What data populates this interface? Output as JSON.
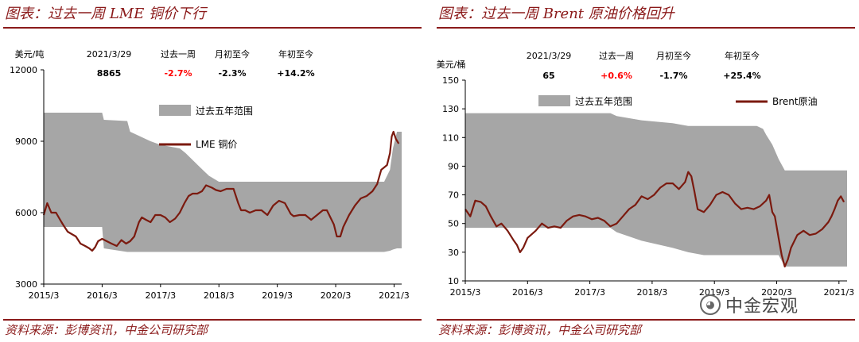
{
  "colors": {
    "accent": "#8b1a1a",
    "band": "#a6a6a6",
    "line": "#7b1a0f",
    "up": "#ff0000"
  },
  "watermark": {
    "text": "中金宏观",
    "icon": "wechat-icon"
  },
  "chart_data": [
    {
      "type": "area",
      "title": "图表：过去一周 LME 铜价下行",
      "source": "资料来源：彭博资讯，中金公司研究部",
      "ylabel": "美元/吨",
      "ylim": [
        3000,
        12000
      ],
      "yticks": [
        "3000",
        "6000",
        "9000",
        "12000"
      ],
      "xlim": [
        2015.17,
        2021.3
      ],
      "xticks": [
        "2015/3",
        "2016/3",
        "2017/3",
        "2018/3",
        "2019/3",
        "2020/3",
        "2021/3"
      ],
      "legend": [
        "过去五年范围",
        "LME 铜价"
      ],
      "stats": {
        "headers": [
          "2021/3/29",
          "过去一周",
          "月初至今",
          "年初至今"
        ],
        "values": [
          "8865",
          "-2.7%",
          "-2.3%",
          "+14.2%"
        ]
      },
      "series": [
        {
          "name": "过去五年范围",
          "x": [
            2015.17,
            2016.17,
            2016.2,
            2016.6,
            2016.65,
            2017.0,
            2017.17,
            2017.5,
            2017.6,
            2017.85,
            2018.0,
            2018.17,
            2018.5,
            2019.0,
            2019.5,
            2020.0,
            2020.5,
            2020.7,
            2021.0,
            2021.1,
            2021.15,
            2021.22,
            2021.3
          ],
          "upper": [
            10200,
            10200,
            9900,
            9850,
            9400,
            9000,
            8850,
            8700,
            8500,
            7900,
            7550,
            7300,
            7300,
            7300,
            7300,
            7300,
            7300,
            7300,
            7300,
            7800,
            8700,
            9400,
            9400
          ],
          "lower": [
            5400,
            5400,
            4500,
            4350,
            4350,
            4350,
            4350,
            4350,
            4350,
            4350,
            4350,
            4350,
            4350,
            4350,
            4350,
            4350,
            4350,
            4350,
            4350,
            4400,
            4450,
            4500,
            4500
          ]
        },
        {
          "name": "LME 铜价",
          "x": [
            2015.17,
            2015.23,
            2015.3,
            2015.38,
            2015.45,
            2015.5,
            2015.58,
            2015.65,
            2015.72,
            2015.8,
            2015.88,
            2015.95,
            2016.0,
            2016.05,
            2016.1,
            2016.17,
            2016.25,
            2016.33,
            2016.42,
            2016.5,
            2016.58,
            2016.65,
            2016.72,
            2016.8,
            2016.85,
            2016.92,
            2017.0,
            2017.08,
            2017.17,
            2017.25,
            2017.33,
            2017.42,
            2017.5,
            2017.58,
            2017.65,
            2017.72,
            2017.8,
            2017.88,
            2017.95,
            2018.05,
            2018.12,
            2018.2,
            2018.3,
            2018.42,
            2018.5,
            2018.55,
            2018.62,
            2018.7,
            2018.8,
            2018.9,
            2019.0,
            2019.1,
            2019.2,
            2019.3,
            2019.4,
            2019.45,
            2019.55,
            2019.65,
            2019.75,
            2019.85,
            2019.95,
            2020.02,
            2020.08,
            2020.14,
            2020.19,
            2020.25,
            2020.3,
            2020.4,
            2020.5,
            2020.6,
            2020.7,
            2020.8,
            2020.88,
            2020.95,
            2021.0,
            2021.05,
            2021.1,
            2021.13,
            2021.16,
            2021.2,
            2021.25
          ],
          "y": [
            5900,
            6400,
            6000,
            6000,
            5700,
            5500,
            5200,
            5100,
            5000,
            4700,
            4600,
            4500,
            4400,
            4550,
            4800,
            4900,
            4800,
            4700,
            4600,
            4850,
            4700,
            4800,
            5000,
            5600,
            5800,
            5700,
            5600,
            5900,
            5900,
            5800,
            5600,
            5750,
            6000,
            6400,
            6700,
            6800,
            6800,
            6900,
            7150,
            7050,
            6950,
            6900,
            7000,
            7000,
            6400,
            6100,
            6100,
            6000,
            6100,
            6100,
            5900,
            6300,
            6500,
            6400,
            5950,
            5850,
            5900,
            5900,
            5700,
            5900,
            6100,
            6100,
            5800,
            5500,
            5000,
            5000,
            5400,
            5900,
            6300,
            6600,
            6700,
            6900,
            7200,
            7800,
            7900,
            8000,
            8500,
            9200,
            9400,
            9100,
            8900
          ]
        }
      ]
    },
    {
      "type": "area",
      "title": "图表：过去一周 Brent 原油价格回升",
      "source": "资料来源：彭博资讯，中金公司研究部",
      "ylabel": "美元/桶",
      "ylim": [
        10,
        150
      ],
      "yticks": [
        "10",
        "30",
        "50",
        "70",
        "90",
        "110",
        "130",
        "150"
      ],
      "xlim": [
        2015.17,
        2021.3
      ],
      "xticks": [
        "2015/3",
        "2016/3",
        "2017/3",
        "2018/3",
        "2019/3",
        "2020/3",
        "2021/3"
      ],
      "legend": [
        "过去五年范围",
        "Brent原油"
      ],
      "stats": {
        "headers": [
          "2021/3/29",
          "过去一周",
          "月初至今",
          "年初至今"
        ],
        "values": [
          "65",
          "+0.6%",
          "-1.7%",
          "+25.4%"
        ]
      },
      "series": [
        {
          "name": "过去五年范围",
          "x": [
            2015.17,
            2017.5,
            2017.6,
            2018.0,
            2018.5,
            2018.75,
            2019.0,
            2019.5,
            2019.85,
            2019.95,
            2020.0,
            2020.1,
            2020.2,
            2020.3,
            2021.3
          ],
          "upper": [
            127,
            127,
            125,
            122,
            120,
            118,
            118,
            118,
            118,
            116,
            112,
            105,
            95,
            87,
            87
          ],
          "lower": [
            47,
            47,
            44,
            38,
            33,
            30,
            28,
            28,
            28,
            28,
            28,
            28,
            28,
            20,
            20
          ]
        },
        {
          "name": "Brent原油",
          "x": [
            2015.17,
            2015.25,
            2015.33,
            2015.42,
            2015.5,
            2015.58,
            2015.67,
            2015.75,
            2015.85,
            2015.95,
            2016.0,
            2016.05,
            2016.1,
            2016.17,
            2016.3,
            2016.4,
            2016.5,
            2016.6,
            2016.7,
            2016.8,
            2016.9,
            2017.0,
            2017.1,
            2017.2,
            2017.3,
            2017.4,
            2017.5,
            2017.6,
            2017.7,
            2017.8,
            2017.9,
            2018.0,
            2018.1,
            2018.2,
            2018.3,
            2018.4,
            2018.5,
            2018.6,
            2018.7,
            2018.75,
            2018.8,
            2018.85,
            2018.9,
            2019.0,
            2019.1,
            2019.2,
            2019.3,
            2019.4,
            2019.5,
            2019.6,
            2019.7,
            2019.8,
            2019.9,
            2020.0,
            2020.05,
            2020.1,
            2020.14,
            2020.2,
            2020.25,
            2020.3,
            2020.35,
            2020.4,
            2020.5,
            2020.6,
            2020.7,
            2020.8,
            2020.9,
            2021.0,
            2021.05,
            2021.1,
            2021.15,
            2021.2,
            2021.25
          ],
          "y": [
            60,
            55,
            66,
            65,
            62,
            55,
            48,
            50,
            45,
            38,
            35,
            30,
            33,
            40,
            45,
            50,
            47,
            48,
            47,
            52,
            55,
            56,
            55,
            53,
            54,
            52,
            48,
            50,
            55,
            60,
            63,
            69,
            67,
            70,
            75,
            78,
            78,
            74,
            79,
            86,
            83,
            72,
            60,
            58,
            63,
            70,
            72,
            70,
            64,
            60,
            61,
            60,
            62,
            66,
            70,
            58,
            55,
            40,
            28,
            20,
            25,
            33,
            42,
            45,
            42,
            43,
            46,
            51,
            55,
            60,
            66,
            69,
            65
          ]
        }
      ]
    }
  ]
}
